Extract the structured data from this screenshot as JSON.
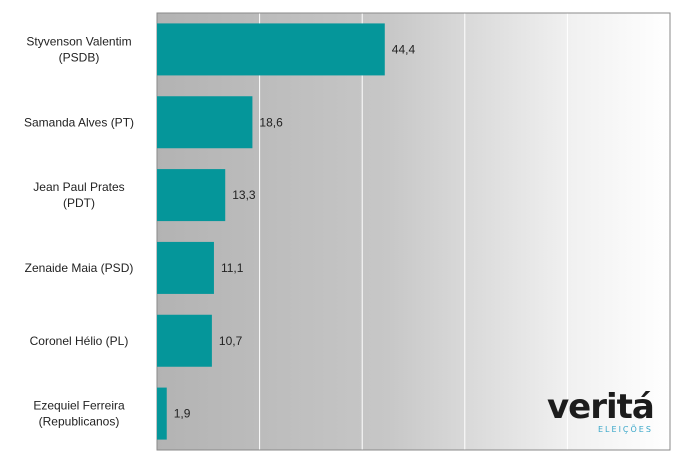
{
  "chart_data": {
    "type": "bar",
    "orientation": "horizontal",
    "categories": [
      [
        "Styvenson Valentim",
        "(PSDB)"
      ],
      [
        "Samanda Alves (PT)"
      ],
      [
        "Jean Paul Prates",
        "(PDT)"
      ],
      [
        "Zenaide Maia (PSD)"
      ],
      [
        "Coronel Hélio (PL)"
      ],
      [
        "Ezequiel Ferreira",
        "(Republicanos)"
      ]
    ],
    "values": [
      44.4,
      18.6,
      13.3,
      11.1,
      10.7,
      1.9
    ],
    "value_labels": [
      "44,4",
      "18,6",
      "13,3",
      "11,1",
      "10,7",
      "1,9"
    ],
    "xlim": [
      0,
      100
    ],
    "grid": true,
    "bar_color": "#05969a"
  },
  "logo": {
    "brand": "veritá",
    "sub": "ELEIÇÕES"
  }
}
